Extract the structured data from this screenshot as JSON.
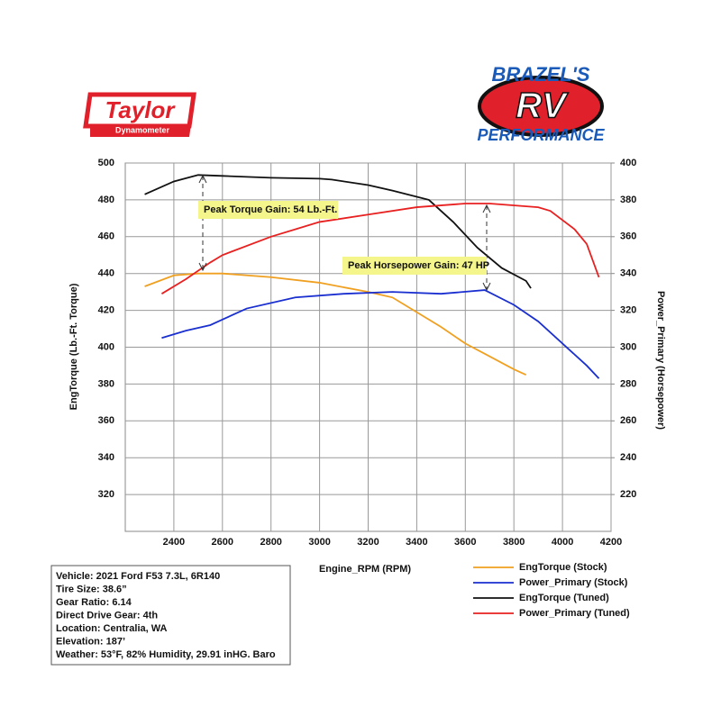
{
  "logos": {
    "taylor": "Taylor",
    "taylor_sub": "Dynamometer",
    "brazel": "BRAZEL'S",
    "rv": "RV",
    "performance": "PERFORMANCE"
  },
  "chart_data": {
    "type": "line",
    "x_label": "Engine_RPM (RPM)",
    "y_label": "EngTorque (Lb.-Ft. Torque)",
    "y2_label": "Power_Primary (Horsepower)",
    "xlim": [
      2200,
      4200
    ],
    "xticks": [
      2400,
      2600,
      2800,
      3000,
      3200,
      3400,
      3600,
      3800,
      4000,
      4200
    ],
    "ylim": [
      300,
      500
    ],
    "yticks": [
      320,
      340,
      360,
      380,
      400,
      420,
      440,
      460,
      480,
      500
    ],
    "y2lim": [
      200,
      400
    ],
    "y2ticks": [
      220,
      240,
      260,
      280,
      300,
      320,
      340,
      360,
      380,
      400
    ],
    "grid": true,
    "series": [
      {
        "name": "EngTorque (Stock)",
        "color": "#f0a020",
        "axis": "y",
        "x": [
          2280,
          2400,
          2500,
          2600,
          2800,
          3000,
          3200,
          3300,
          3400,
          3500,
          3600,
          3700,
          3800,
          3850
        ],
        "values": [
          433,
          439,
          440,
          440,
          438,
          435,
          430,
          427,
          419,
          411,
          402,
          395,
          388,
          385
        ]
      },
      {
        "name": "Power_Primary (Stock)",
        "color": "#1a2fd0",
        "axis": "y2",
        "x": [
          2350,
          2450,
          2550,
          2600,
          2700,
          2900,
          3100,
          3300,
          3500,
          3680,
          3800,
          3900,
          4000,
          4100,
          4150
        ],
        "values": [
          305,
          309,
          312,
          315,
          321,
          327,
          329,
          330,
          329,
          331,
          323,
          314,
          302,
          290,
          283
        ]
      },
      {
        "name": "EngTorque (Tuned)",
        "color": "#111111",
        "axis": "y",
        "x": [
          2280,
          2400,
          2500,
          2600,
          2800,
          3000,
          3050,
          3200,
          3300,
          3450,
          3550,
          3650,
          3750,
          3850,
          3870
        ],
        "values": [
          483,
          490,
          493.5,
          493,
          492,
          491.5,
          491,
          488,
          485,
          480,
          468,
          454,
          443,
          436,
          432
        ]
      },
      {
        "name": "Power_Primary (Tuned)",
        "color": "#e82020",
        "axis": "y2",
        "x": [
          2350,
          2450,
          2550,
          2600,
          2800,
          3000,
          3200,
          3400,
          3600,
          3700,
          3900,
          3950,
          4050,
          4100,
          4150
        ],
        "values": [
          329,
          337,
          346,
          350,
          360,
          368,
          372,
          376,
          378,
          378,
          376,
          374,
          364,
          356,
          338
        ]
      }
    ],
    "annotations": [
      "Peak Torque Gain: 54 Lb.-Ft.",
      "Peak Horsepower Gain: 47 HP"
    ],
    "legend": "bottom-right"
  },
  "vehicle_info": [
    "Vehicle: 2021 Ford F53 7.3L, 6R140",
    "Tire Size: 38.6”",
    "Gear Ratio: 6.14",
    "Direct Drive Gear: 4th",
    "Location: Centralia, WA",
    "Elevation: 187’",
    "Weather: 53°F, 82% Humidity, 29.91 inHG. Baro"
  ]
}
